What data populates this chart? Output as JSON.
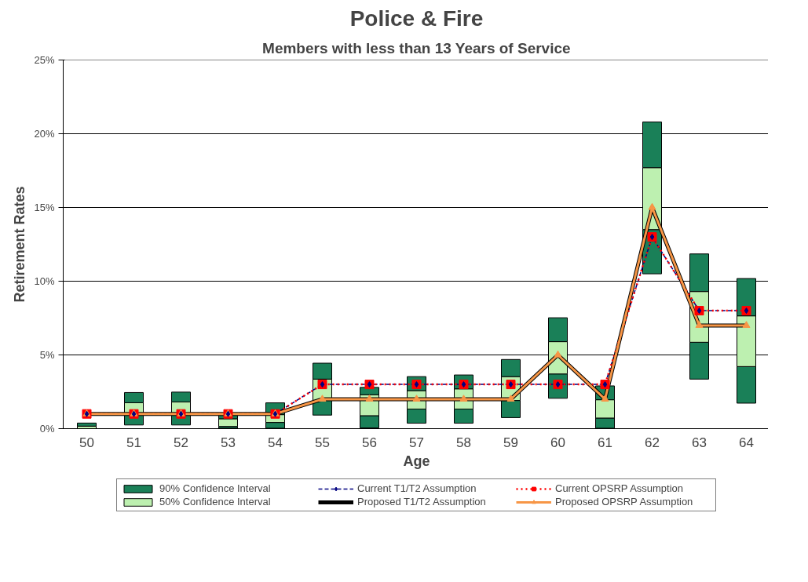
{
  "chart_data": {
    "type": "bar",
    "title": "Police & Fire",
    "subtitle": "Members with less than 13 Years of Service",
    "xlabel": "Age",
    "ylabel": "Retirement Rates",
    "categories": [
      "50",
      "51",
      "52",
      "53",
      "54",
      "55",
      "56",
      "57",
      "58",
      "59",
      "60",
      "61",
      "62",
      "63",
      "64"
    ],
    "series": [
      {
        "name": "90% Confidence Interval",
        "color": "#1a8058",
        "base": [
          null,
          0.25,
          0.25,
          0.03,
          0.03,
          0.92,
          0.05,
          0.37,
          0.37,
          0.75,
          2.06,
          0.03,
          10.5,
          3.36,
          1.73
        ],
        "values": [
          null,
          0.67,
          0.67,
          0.12,
          0.39,
          1.0,
          0.83,
          0.96,
          0.96,
          1.16,
          1.65,
          0.69,
          3.0,
          2.5,
          2.48
        ]
      },
      {
        "name": "50% Confidence Interval",
        "color": "#bdf0b0",
        "base": [
          0,
          0.92,
          0.92,
          0.15,
          0.42,
          1.92,
          0.88,
          1.33,
          1.33,
          1.91,
          3.71,
          0.72,
          13.5,
          5.86,
          4.21
        ],
        "values": [
          0.17,
          0.84,
          0.89,
          0.52,
          0.53,
          1.44,
          1.42,
          1.25,
          1.37,
          1.62,
          2.19,
          1.24,
          4.2,
          3.44,
          3.44
        ]
      },
      {
        "color": "#1a8058",
        "base": [
          0.17,
          1.76,
          1.81,
          0.67,
          0.95,
          3.36,
          2.3,
          2.58,
          2.7,
          3.53,
          5.9,
          1.96,
          17.7,
          9.3,
          7.65
        ],
        "values": [
          0.21,
          0.69,
          0.67,
          0.28,
          0.8,
          1.08,
          0.5,
          0.95,
          0.94,
          1.16,
          1.62,
          0.94,
          3.1,
          2.55,
          2.53
        ]
      },
      {
        "name": "Current T1/T2 Assumption",
        "type": "line",
        "color": "#000080",
        "marker": "diamond",
        "line_style": "dashed",
        "values": [
          1,
          1,
          1,
          1,
          1,
          3,
          3,
          3,
          3,
          3,
          3,
          3,
          13,
          8,
          8
        ]
      },
      {
        "name": "Proposed T1/T2 Assumption",
        "type": "line",
        "color": "#000000",
        "marker": "none",
        "line_style": "solid",
        "values": [
          1,
          1,
          1,
          1,
          1,
          2,
          2,
          2,
          2,
          2,
          5,
          2,
          15,
          7,
          7
        ]
      },
      {
        "name": "Current OPSRP Assumption",
        "type": "line",
        "color": "#ff0000",
        "marker": "square",
        "line_style": "dotted",
        "values": [
          1,
          1,
          1,
          1,
          1,
          3,
          3,
          3,
          3,
          3,
          3,
          3,
          13,
          8,
          8
        ]
      },
      {
        "name": "Proposed OPSRP Assumption",
        "type": "line",
        "color": "#f79646",
        "marker": "triangle",
        "line_style": "solid",
        "values": [
          1,
          1,
          1,
          1,
          1,
          2,
          2,
          2,
          2,
          2,
          5,
          2,
          15,
          7,
          7
        ]
      }
    ],
    "ylim": [
      0,
      25
    ],
    "yticks": [
      {
        "value": 0,
        "label": "0%"
      },
      {
        "value": 5,
        "label": "5%"
      },
      {
        "value": 10,
        "label": "10%"
      },
      {
        "value": 15,
        "label": "15%"
      },
      {
        "value": 20,
        "label": "20%"
      },
      {
        "value": 25,
        "label": "25%"
      }
    ],
    "grid": "y",
    "legend": "bottom"
  }
}
